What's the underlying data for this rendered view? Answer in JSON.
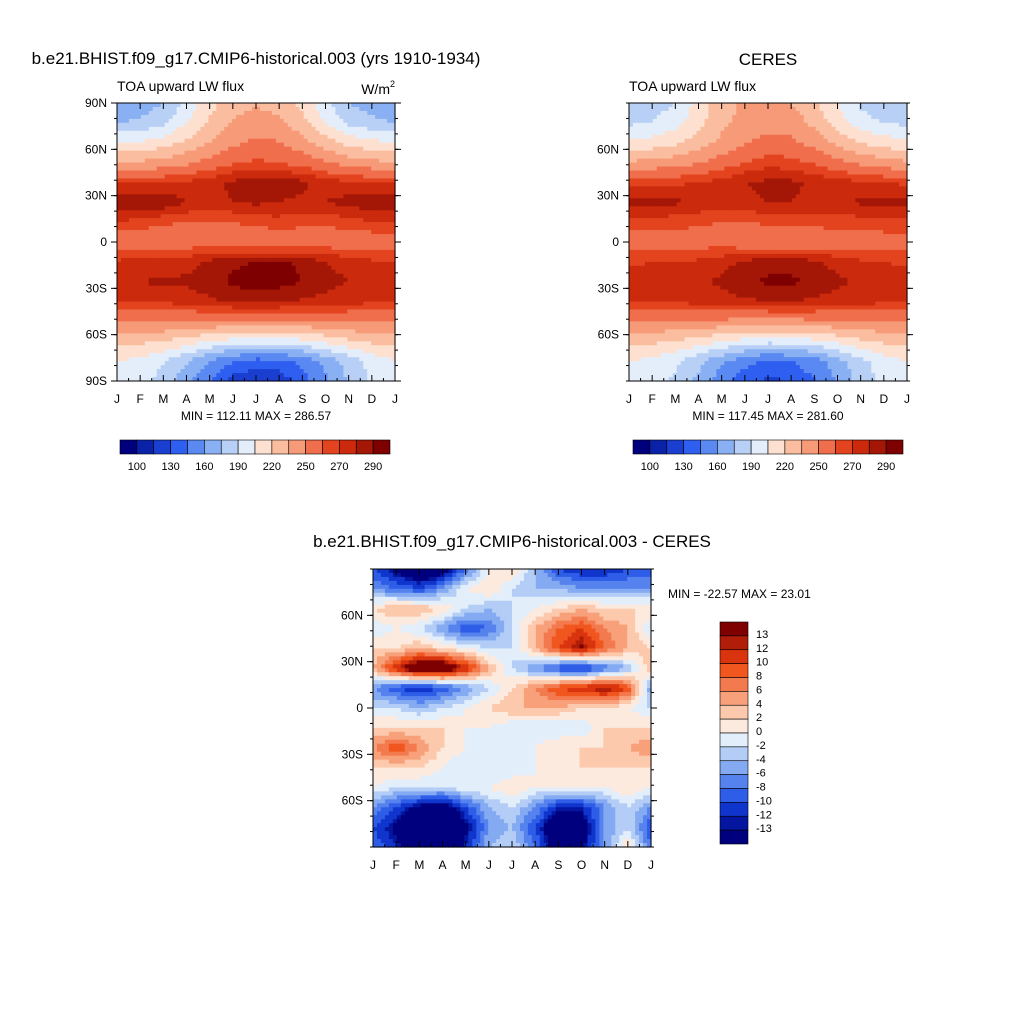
{
  "panels": [
    {
      "id": "model",
      "title": "b.e21.BHIST.f09_g17.CMIP6-historical.003 (yrs 1910-1934)",
      "left_label": "TOA upward LW flux",
      "units": "W/m",
      "units_sup": "2",
      "minmax": "MIN = 112.11 MAX = 286.57",
      "ylabels": [
        "90N",
        "60N",
        "30N",
        "0",
        "30S",
        "60S",
        "90S"
      ],
      "colorbar_labels": [
        "100",
        "130",
        "160",
        "190",
        "220",
        "250",
        "270",
        "290"
      ]
    },
    {
      "id": "obs",
      "title": "CERES",
      "left_label": "TOA upward LW flux",
      "units": "",
      "units_sup": "",
      "minmax": "MIN = 117.45 MAX = 281.60",
      "ylabels": [
        "60N",
        "30N",
        "0",
        "30S",
        "60S"
      ],
      "colorbar_labels": [
        "100",
        "130",
        "160",
        "190",
        "220",
        "250",
        "270",
        "290"
      ]
    },
    {
      "id": "diff",
      "title": "b.e21.BHIST.f09_g17.CMIP6-historical.003 - CERES",
      "left_label": "",
      "units": "",
      "units_sup": "",
      "minmax": "MIN = -22.57 MAX =  23.01",
      "ylabels": [
        "60N",
        "30N",
        "0",
        "30S",
        "60S"
      ],
      "colorbar_labels": [
        "13",
        "12",
        "10",
        "8",
        "6",
        "4",
        "2",
        "0",
        "-2",
        "-4",
        "-6",
        "-8",
        "-10",
        "-12",
        "-13"
      ]
    }
  ],
  "xlabels": [
    "J",
    "F",
    "M",
    "A",
    "M",
    "J",
    "J",
    "A",
    "S",
    "O",
    "N",
    "D",
    "J"
  ],
  "colors": {
    "abs_scale": [
      "#00007f",
      "#0a22a8",
      "#1a3fd0",
      "#2f5ff0",
      "#5a89f2",
      "#8ab0f4",
      "#b8d0f6",
      "#e4eefa",
      "#fde0cf",
      "#fbbd9f",
      "#f79a78",
      "#f06e4c",
      "#e3441f",
      "#cc2a0c",
      "#a41707",
      "#7f0000"
    ],
    "diff_scale": [
      "#7f0000",
      "#b01e0a",
      "#d9340e",
      "#f0561e",
      "#f27a4e",
      "#f8a07a",
      "#fcc9ad",
      "#fdeadf",
      "#e3eefb",
      "#b3cdf6",
      "#84aaf2",
      "#5682ee",
      "#2e5de8",
      "#1035cd",
      "#04169f",
      "#00007f"
    ]
  },
  "chart_data": [
    {
      "type": "heatmap",
      "title": "b.e21.BHIST.f09_g17.CMIP6-historical.003 (yrs 1910-1934)",
      "variable": "TOA upward LW flux",
      "units": "W/m2",
      "x": [
        "J",
        "F",
        "M",
        "A",
        "M",
        "J",
        "J",
        "A",
        "S",
        "O",
        "N",
        "D",
        "J"
      ],
      "y": [
        90,
        75,
        60,
        45,
        30,
        20,
        10,
        0,
        -10,
        -20,
        -30,
        -45,
        -60,
        -75,
        -90
      ],
      "values": [
        [
          150,
          152,
          160,
          178,
          200,
          212,
          218,
          214,
          200,
          178,
          160,
          152,
          150
        ],
        [
          160,
          162,
          172,
          190,
          208,
          222,
          228,
          224,
          210,
          190,
          172,
          164,
          160
        ],
        [
          190,
          192,
          198,
          208,
          220,
          232,
          238,
          236,
          226,
          212,
          200,
          194,
          190
        ],
        [
          220,
          222,
          226,
          232,
          240,
          248,
          252,
          250,
          244,
          236,
          228,
          224,
          220
        ],
        [
          258,
          258,
          260,
          262,
          266,
          272,
          276,
          276,
          272,
          266,
          262,
          260,
          258
        ],
        [
          278,
          282,
          278,
          270,
          268,
          270,
          272,
          270,
          268,
          270,
          274,
          276,
          278
        ],
        [
          260,
          256,
          252,
          250,
          248,
          250,
          254,
          256,
          254,
          252,
          256,
          260,
          260
        ],
        [
          240,
          240,
          238,
          242,
          246,
          242,
          238,
          238,
          240,
          242,
          242,
          240,
          240
        ],
        [
          262,
          264,
          264,
          266,
          272,
          278,
          280,
          282,
          278,
          270,
          266,
          262,
          262
        ],
        [
          270,
          270,
          272,
          272,
          276,
          282,
          286,
          284,
          280,
          274,
          270,
          270,
          270
        ],
        [
          262,
          262,
          262,
          264,
          268,
          272,
          272,
          272,
          268,
          266,
          264,
          262,
          262
        ],
        [
          236,
          236,
          236,
          234,
          234,
          232,
          232,
          232,
          232,
          234,
          236,
          236,
          236
        ],
        [
          210,
          208,
          204,
          198,
          190,
          184,
          182,
          182,
          186,
          194,
          202,
          208,
          210
        ],
        [
          190,
          186,
          176,
          162,
          144,
          130,
          124,
          126,
          134,
          150,
          166,
          180,
          190
        ],
        [
          186,
          182,
          168,
          150,
          130,
          116,
          112,
          114,
          124,
          142,
          162,
          178,
          186
        ]
      ],
      "min": 112.11,
      "max": 286.57,
      "levels": [
        100,
        110,
        120,
        130,
        145,
        160,
        175,
        190,
        205,
        220,
        235,
        250,
        260,
        270,
        280,
        290
      ]
    },
    {
      "type": "heatmap",
      "title": "CERES",
      "variable": "TOA upward LW flux",
      "units": "W/m2",
      "x": [
        "J",
        "F",
        "M",
        "A",
        "M",
        "J",
        "J",
        "A",
        "S",
        "O",
        "N",
        "D",
        "J"
      ],
      "y": [
        90,
        75,
        60,
        45,
        30,
        20,
        10,
        0,
        -10,
        -20,
        -30,
        -45,
        -60,
        -75,
        -90
      ],
      "values": [
        [
          162,
          166,
          176,
          196,
          214,
          222,
          224,
          220,
          208,
          190,
          172,
          164,
          162
        ],
        [
          172,
          176,
          184,
          200,
          216,
          226,
          230,
          228,
          216,
          198,
          182,
          174,
          172
        ],
        [
          194,
          196,
          202,
          212,
          224,
          234,
          240,
          238,
          230,
          216,
          204,
          198,
          194
        ],
        [
          222,
          224,
          228,
          234,
          242,
          250,
          256,
          254,
          248,
          240,
          232,
          226,
          222
        ],
        [
          258,
          258,
          258,
          260,
          264,
          270,
          272,
          272,
          268,
          264,
          262,
          260,
          258
        ],
        [
          272,
          274,
          272,
          268,
          266,
          268,
          270,
          270,
          268,
          268,
          272,
          274,
          272
        ],
        [
          258,
          256,
          254,
          252,
          250,
          250,
          252,
          254,
          254,
          254,
          256,
          258,
          258
        ],
        [
          242,
          242,
          242,
          244,
          244,
          240,
          238,
          238,
          240,
          242,
          242,
          242,
          242
        ],
        [
          258,
          260,
          260,
          262,
          266,
          272,
          276,
          276,
          272,
          266,
          262,
          260,
          258
        ],
        [
          266,
          266,
          268,
          268,
          272,
          278,
          282,
          282,
          278,
          272,
          268,
          266,
          266
        ],
        [
          262,
          262,
          262,
          264,
          266,
          268,
          270,
          270,
          268,
          266,
          264,
          262,
          262
        ],
        [
          234,
          234,
          234,
          232,
          232,
          230,
          230,
          230,
          232,
          232,
          234,
          234,
          234
        ],
        [
          210,
          208,
          204,
          198,
          190,
          184,
          180,
          182,
          186,
          194,
          202,
          208,
          210
        ],
        [
          190,
          186,
          178,
          164,
          148,
          134,
          128,
          130,
          138,
          154,
          170,
          182,
          190
        ],
        [
          188,
          184,
          172,
          156,
          136,
          122,
          118,
          120,
          128,
          146,
          166,
          180,
          188
        ]
      ],
      "min": 117.45,
      "max": 281.6,
      "levels": [
        100,
        110,
        120,
        130,
        145,
        160,
        175,
        190,
        205,
        220,
        235,
        250,
        260,
        270,
        280,
        290
      ]
    },
    {
      "type": "heatmap",
      "title": "b.e21.BHIST.f09_g17.CMIP6-historical.003 - CERES",
      "variable": "TOA upward LW flux difference",
      "units": "W/m2",
      "x": [
        "J",
        "F",
        "M",
        "A",
        "M",
        "J",
        "J",
        "A",
        "S",
        "O",
        "N",
        "D",
        "J"
      ],
      "y": [
        90,
        75,
        60,
        45,
        30,
        20,
        10,
        0,
        -10,
        -20,
        -30,
        -45,
        -60,
        -75,
        -90
      ],
      "values": [
        [
          -10,
          -14,
          -18,
          -16,
          -8,
          0,
          2,
          -4,
          -10,
          -12,
          -12,
          -10,
          -10
        ],
        [
          -6,
          -8,
          -10,
          -6,
          0,
          2,
          -2,
          -4,
          -4,
          -6,
          -6,
          -6,
          -6
        ],
        [
          2,
          4,
          4,
          2,
          -2,
          -4,
          -2,
          0,
          2,
          4,
          2,
          2,
          2
        ],
        [
          -2,
          0,
          -2,
          -6,
          -10,
          -8,
          -2,
          4,
          8,
          10,
          6,
          4,
          -2
        ],
        [
          2,
          2,
          4,
          2,
          0,
          -2,
          -2,
          4,
          10,
          14,
          8,
          4,
          2
        ],
        [
          4,
          12,
          18,
          18,
          12,
          4,
          -2,
          -6,
          -10,
          -12,
          -8,
          -4,
          4
        ],
        [
          -6,
          -10,
          -12,
          -10,
          -6,
          -2,
          2,
          6,
          10,
          12,
          14,
          10,
          -6
        ],
        [
          -2,
          -2,
          -4,
          -2,
          0,
          2,
          4,
          4,
          4,
          2,
          2,
          0,
          -2
        ],
        [
          2,
          2,
          2,
          2,
          0,
          0,
          -2,
          -2,
          -2,
          -2,
          2,
          2,
          2
        ],
        [
          6,
          10,
          6,
          2,
          0,
          -2,
          -2,
          0,
          2,
          2,
          2,
          4,
          6
        ],
        [
          2,
          2,
          2,
          0,
          -2,
          -2,
          -2,
          0,
          0,
          2,
          2,
          2,
          2
        ],
        [
          0,
          -2,
          -2,
          -2,
          0,
          0,
          2,
          0,
          0,
          0,
          0,
          2,
          0
        ],
        [
          -6,
          -10,
          -14,
          -16,
          -10,
          -4,
          -2,
          -6,
          -12,
          -12,
          -6,
          -2,
          -6
        ],
        [
          -10,
          -14,
          -20,
          -22,
          -14,
          -6,
          -4,
          -10,
          -18,
          -16,
          -6,
          -2,
          -10
        ],
        [
          -8,
          -12,
          -16,
          -18,
          -12,
          -4,
          -2,
          -8,
          -16,
          -14,
          -6,
          2,
          -8
        ]
      ],
      "min": -22.57,
      "max": 23.01,
      "levels": [
        -13,
        -12,
        -10,
        -8,
        -6,
        -4,
        -2,
        0,
        2,
        4,
        6,
        8,
        10,
        12,
        13
      ]
    }
  ]
}
